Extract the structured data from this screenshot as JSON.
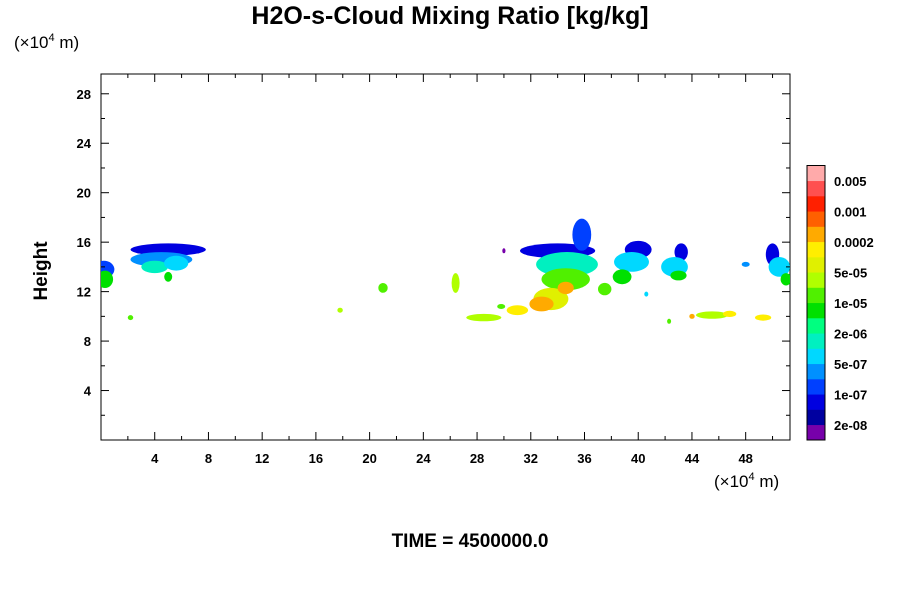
{
  "chart_data": {
    "type": "heatmap",
    "title": "H2O-s-Cloud Mixing Ratio [kg/kg]",
    "xlabel": "",
    "ylabel": "Height",
    "x_unit": {
      "base": "(×10",
      "exp": "4",
      "tail": " m)"
    },
    "y_unit": {
      "base": "(×10",
      "exp": "4",
      "tail": " m)"
    },
    "xlim": [
      0,
      51.3
    ],
    "ylim": [
      0,
      29.6
    ],
    "x_ticks": [
      4,
      8,
      12,
      16,
      20,
      24,
      28,
      32,
      36,
      40,
      44,
      48
    ],
    "y_ticks": [
      4,
      8,
      12,
      16,
      20,
      24,
      28
    ],
    "colorbar": {
      "colors": [
        "#7700aa",
        "#0000a0",
        "#0000e0",
        "#0040ff",
        "#0090ff",
        "#00d8ff",
        "#00f0c0",
        "#00ff80",
        "#00e000",
        "#50f000",
        "#b0ff00",
        "#e0f000",
        "#ffee00",
        "#ffaa00",
        "#ff6000",
        "#ff2000",
        "#ff5050",
        "#ffaaaa"
      ],
      "labels": [
        {
          "after": 1,
          "text": "2e-08"
        },
        {
          "after": 3,
          "text": "1e-07"
        },
        {
          "after": 5,
          "text": "5e-07"
        },
        {
          "after": 7,
          "text": "2e-06"
        },
        {
          "after": 9,
          "text": "1e-05"
        },
        {
          "after": 11,
          "text": "5e-05"
        },
        {
          "after": 13,
          "text": "0.0002"
        },
        {
          "after": 15,
          "text": "0.001"
        },
        {
          "after": 17,
          "text": "0.005"
        }
      ]
    },
    "cloud_regions": [
      {
        "x": 0.2,
        "y": 13.8,
        "rx": 0.8,
        "ry": 0.7,
        "level": 3
      },
      {
        "x": 0.3,
        "y": 13.0,
        "rx": 0.6,
        "ry": 0.7,
        "level": 8
      },
      {
        "x": 5.0,
        "y": 15.4,
        "rx": 2.8,
        "ry": 0.5,
        "level": 2
      },
      {
        "x": 4.5,
        "y": 14.6,
        "rx": 2.3,
        "ry": 0.6,
        "level": 4
      },
      {
        "x": 4.0,
        "y": 14.0,
        "rx": 1.0,
        "ry": 0.5,
        "level": 6
      },
      {
        "x": 5.6,
        "y": 14.3,
        "rx": 0.9,
        "ry": 0.6,
        "level": 5
      },
      {
        "x": 5.0,
        "y": 13.2,
        "rx": 0.3,
        "ry": 0.4,
        "level": 8
      },
      {
        "x": 2.2,
        "y": 9.9,
        "rx": 0.2,
        "ry": 0.2,
        "level": 9
      },
      {
        "x": 17.8,
        "y": 10.5,
        "rx": 0.2,
        "ry": 0.2,
        "level": 10
      },
      {
        "x": 21.0,
        "y": 12.3,
        "rx": 0.35,
        "ry": 0.4,
        "level": 9
      },
      {
        "x": 26.4,
        "y": 12.7,
        "rx": 0.3,
        "ry": 0.8,
        "level": 10
      },
      {
        "x": 34.0,
        "y": 15.3,
        "rx": 2.8,
        "ry": 0.6,
        "level": 2
      },
      {
        "x": 35.8,
        "y": 16.6,
        "rx": 0.7,
        "ry": 1.3,
        "level": 3
      },
      {
        "x": 34.7,
        "y": 14.2,
        "rx": 2.3,
        "ry": 1.0,
        "level": 6
      },
      {
        "x": 34.6,
        "y": 13.0,
        "rx": 1.8,
        "ry": 0.9,
        "level": 9
      },
      {
        "x": 33.5,
        "y": 11.4,
        "rx": 1.3,
        "ry": 0.9,
        "level": 11
      },
      {
        "x": 32.8,
        "y": 11.0,
        "rx": 0.9,
        "ry": 0.6,
        "level": 13
      },
      {
        "x": 34.6,
        "y": 12.3,
        "rx": 0.6,
        "ry": 0.5,
        "level": 13
      },
      {
        "x": 40.0,
        "y": 15.4,
        "rx": 1.0,
        "ry": 0.7,
        "level": 2
      },
      {
        "x": 39.5,
        "y": 14.4,
        "rx": 1.3,
        "ry": 0.8,
        "level": 5
      },
      {
        "x": 38.8,
        "y": 13.2,
        "rx": 0.7,
        "ry": 0.6,
        "level": 8
      },
      {
        "x": 43.2,
        "y": 15.2,
        "rx": 0.5,
        "ry": 0.7,
        "level": 2
      },
      {
        "x": 42.7,
        "y": 14.0,
        "rx": 1.0,
        "ry": 0.8,
        "level": 5
      },
      {
        "x": 43.0,
        "y": 13.3,
        "rx": 0.6,
        "ry": 0.4,
        "level": 8
      },
      {
        "x": 50.0,
        "y": 15.0,
        "rx": 0.5,
        "ry": 0.9,
        "level": 2
      },
      {
        "x": 50.5,
        "y": 14.0,
        "rx": 0.8,
        "ry": 0.8,
        "level": 5
      },
      {
        "x": 51.0,
        "y": 13.0,
        "rx": 0.4,
        "ry": 0.5,
        "level": 8
      },
      {
        "x": 37.5,
        "y": 12.2,
        "rx": 0.5,
        "ry": 0.5,
        "level": 9
      },
      {
        "x": 28.5,
        "y": 9.9,
        "rx": 1.3,
        "ry": 0.3,
        "level": 10
      },
      {
        "x": 31.0,
        "y": 10.5,
        "rx": 0.8,
        "ry": 0.4,
        "level": 12
      },
      {
        "x": 29.8,
        "y": 10.8,
        "rx": 0.3,
        "ry": 0.2,
        "level": 9
      },
      {
        "x": 45.5,
        "y": 10.1,
        "rx": 1.2,
        "ry": 0.3,
        "level": 10
      },
      {
        "x": 46.8,
        "y": 10.2,
        "rx": 0.5,
        "ry": 0.25,
        "level": 12
      },
      {
        "x": 49.3,
        "y": 9.9,
        "rx": 0.6,
        "ry": 0.25,
        "level": 12
      },
      {
        "x": 44.0,
        "y": 10.0,
        "rx": 0.2,
        "ry": 0.2,
        "level": 13
      },
      {
        "x": 40.6,
        "y": 11.8,
        "rx": 0.15,
        "ry": 0.2,
        "level": 5
      },
      {
        "x": 42.3,
        "y": 9.6,
        "rx": 0.15,
        "ry": 0.2,
        "level": 9
      },
      {
        "x": 48.0,
        "y": 14.2,
        "rx": 0.3,
        "ry": 0.2,
        "level": 4
      },
      {
        "x": 30.0,
        "y": 15.3,
        "rx": 0.12,
        "ry": 0.2,
        "level": 0
      }
    ]
  },
  "footer": {
    "time_label": "TIME = 4500000.0"
  }
}
